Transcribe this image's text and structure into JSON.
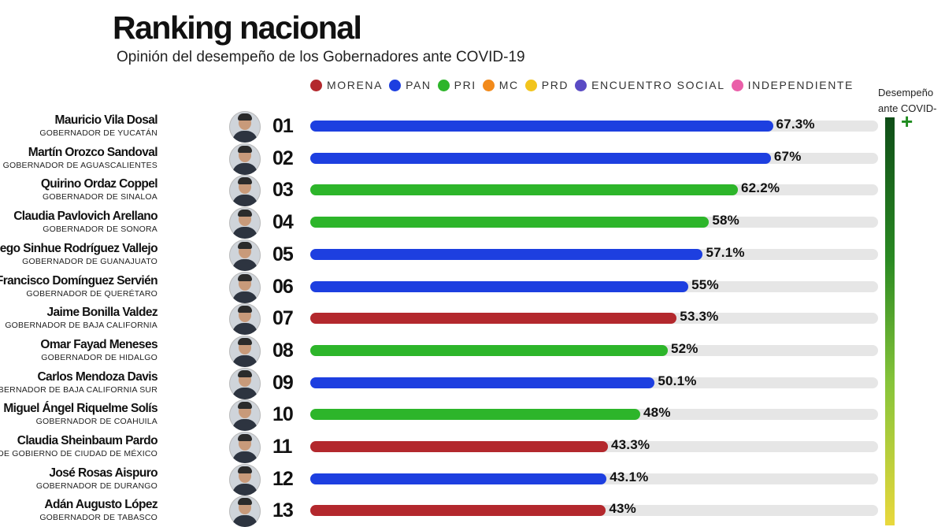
{
  "title": "Ranking nacional",
  "subtitle": "Opinión del desempeño de los Gobernadores ante COVID-19",
  "legend": [
    {
      "label": "MORENA",
      "color": "#b3282d"
    },
    {
      "label": "PAN",
      "color": "#1d3fe0"
    },
    {
      "label": "PRI",
      "color": "#2db52a"
    },
    {
      "label": "MC",
      "color": "#f28a1b"
    },
    {
      "label": "PRD",
      "color": "#f2c41c"
    },
    {
      "label": "ENCUENTRO SOCIAL",
      "color": "#5a4bc4"
    },
    {
      "label": "INDEPENDIENTE",
      "color": "#ea5fa9"
    }
  ],
  "scale": {
    "label_line1": "Desempeño",
    "label_line2": "ante COVID-",
    "plus": "+"
  },
  "party_colors": {
    "MORENA": "#b3282d",
    "PAN": "#1d3fe0",
    "PRI": "#2db52a"
  },
  "chart_data": {
    "type": "bar",
    "orientation": "horizontal",
    "title": "Ranking nacional",
    "subtitle": "Opinión del desempeño de los Gobernadores ante COVID-19",
    "xlim": [
      0,
      100
    ],
    "rows": [
      {
        "rank": "01",
        "name": "Mauricio Vila Dosal",
        "role": "GOBERNADOR DE YUCATÁN",
        "party": "PAN",
        "value": 67.3,
        "label": "67.3%"
      },
      {
        "rank": "02",
        "name": "Martín Orozco Sandoval",
        "role": "GOBERNADOR DE AGUASCALIENTES",
        "party": "PAN",
        "value": 67,
        "label": "67%"
      },
      {
        "rank": "03",
        "name": "Quirino Ordaz Coppel",
        "role": "GOBERNADOR DE SINALOA",
        "party": "PRI",
        "value": 62.2,
        "label": "62.2%"
      },
      {
        "rank": "04",
        "name": "Claudia Pavlovich Arellano",
        "role": "GOBERNADOR DE SONORA",
        "party": "PRI",
        "value": 58,
        "label": "58%"
      },
      {
        "rank": "05",
        "name": "Diego Sinhue Rodríguez Vallejo",
        "role": "GOBERNADOR DE GUANAJUATO",
        "party": "PAN",
        "value": 57.1,
        "label": "57.1%"
      },
      {
        "rank": "06",
        "name": "Francisco Domínguez Servién",
        "role": "GOBERNADOR DE QUERÉTARO",
        "party": "PAN",
        "value": 55,
        "label": "55%"
      },
      {
        "rank": "07",
        "name": "Jaime Bonilla Valdez",
        "role": "GOBERNADOR DE BAJA CALIFORNIA",
        "party": "MORENA",
        "value": 53.3,
        "label": "53.3%"
      },
      {
        "rank": "08",
        "name": "Omar Fayad Meneses",
        "role": "GOBERNADOR DE HIDALGO",
        "party": "PRI",
        "value": 52,
        "label": "52%"
      },
      {
        "rank": "09",
        "name": "Carlos Mendoza Davis",
        "role": "GOBERNADOR DE BAJA CALIFORNIA SUR",
        "party": "PAN",
        "value": 50.1,
        "label": "50.1%"
      },
      {
        "rank": "10",
        "name": "Miguel Ángel Riquelme Solís",
        "role": "GOBERNADOR DE COAHUILA",
        "party": "PRI",
        "value": 48,
        "label": "48%"
      },
      {
        "rank": "11",
        "name": "Claudia Sheinbaum Pardo",
        "role": "JEFA DE GOBIERNO DE CIUDAD DE MÉXICO",
        "party": "MORENA",
        "value": 43.3,
        "label": "43.3%"
      },
      {
        "rank": "12",
        "name": "José Rosas Aispuro",
        "role": "GOBERNADOR DE DURANGO",
        "party": "PAN",
        "value": 43.1,
        "label": "43.1%"
      },
      {
        "rank": "13",
        "name": "Adán Augusto López",
        "role": "GOBERNADOR DE TABASCO",
        "party": "MORENA",
        "value": 43,
        "label": "43%"
      }
    ]
  }
}
